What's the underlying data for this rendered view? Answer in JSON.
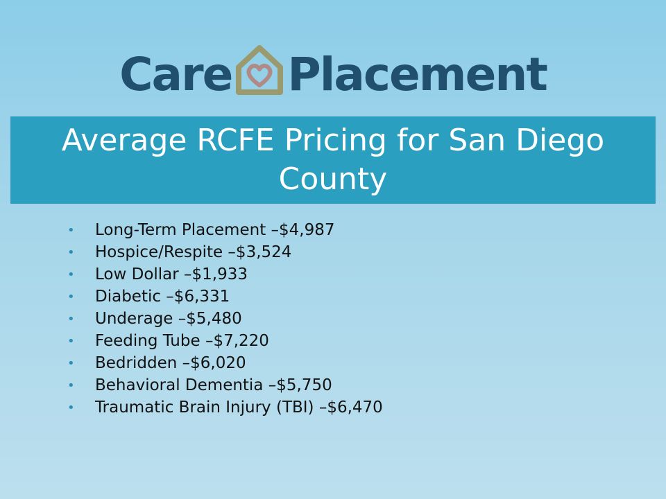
{
  "logo": {
    "left_word": "Care",
    "right_word": "Placement",
    "brand_color": "#20506e",
    "mark_color": "#9a9a6e"
  },
  "title": "Average RCFE Pricing for San Diego County",
  "bullet_color": "#2a8fb5",
  "band_color": "#2a9fbf",
  "items": [
    {
      "text": "Long-Term Placement –$4,987"
    },
    {
      "text": "Hospice/Respite –$3,524"
    },
    {
      "text": "Low Dollar –$1,933"
    },
    {
      "text": "Diabetic –$6,331"
    },
    {
      "text": "Underage –$5,480"
    },
    {
      "text": "Feeding Tube –$7,220"
    },
    {
      "text": "Bedridden –$6,020"
    },
    {
      "text": "Behavioral Dementia –$5,750"
    },
    {
      "text": "Traumatic Brain Injury (TBI) –$6,470"
    }
  ]
}
